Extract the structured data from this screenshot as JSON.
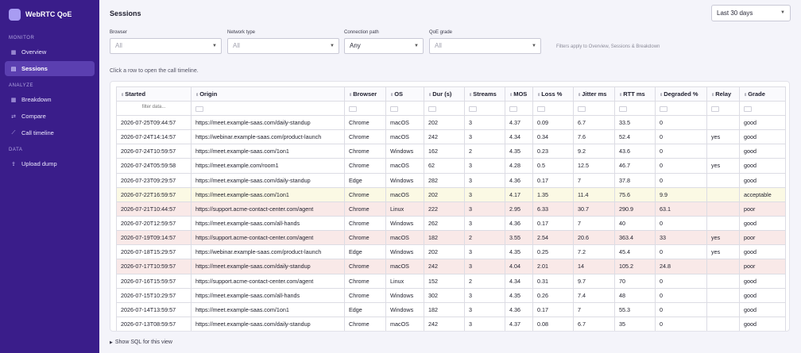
{
  "app": {
    "name": "WebRTC QoE"
  },
  "sidebar": {
    "sections": [
      {
        "title": "MONITOR",
        "items": [
          {
            "label": "Overview",
            "icon": "grid-icon"
          },
          {
            "label": "Sessions",
            "icon": "list-icon",
            "active": true
          }
        ]
      },
      {
        "title": "ANALYZE",
        "items": [
          {
            "label": "Breakdown",
            "icon": "grid-icon"
          },
          {
            "label": "Compare",
            "icon": "compare-icon"
          },
          {
            "label": "Call timeline",
            "icon": "timeline-icon"
          }
        ]
      },
      {
        "title": "DATA",
        "items": [
          {
            "label": "Upload dump",
            "icon": "upload-icon"
          }
        ]
      }
    ]
  },
  "header": {
    "title": "Sessions",
    "range": "Last 30 days"
  },
  "filters": {
    "browser": {
      "label": "Browser",
      "value": "All"
    },
    "network": {
      "label": "Network type",
      "value": "All"
    },
    "connection": {
      "label": "Connection path",
      "value": "Any"
    },
    "grade": {
      "label": "QoE grade",
      "value": "All"
    },
    "note": "Filters apply to Overview, Sessions & Breakdown"
  },
  "hint": "Click a row to open the call timeline.",
  "table": {
    "columns": [
      "Started",
      "Origin",
      "Browser",
      "OS",
      "Dur (s)",
      "Streams",
      "MOS",
      "Loss %",
      "Jitter ms",
      "RTT ms",
      "Degraded %",
      "Relay",
      "Grade"
    ],
    "filter_placeholder": "filter data...",
    "rows": [
      [
        "2026-07-25T09:44:57",
        "https://meet.example-saas.com/daily-standup",
        "Chrome",
        "macOS",
        "202",
        "3",
        "4.37",
        "0.09",
        "6.7",
        "33.5",
        "0",
        "",
        "good"
      ],
      [
        "2026-07-24T14:14:57",
        "https://webinar.example-saas.com/product-launch",
        "Chrome",
        "macOS",
        "242",
        "3",
        "4.34",
        "0.34",
        "7.6",
        "52.4",
        "0",
        "yes",
        "good"
      ],
      [
        "2026-07-24T10:59:57",
        "https://meet.example-saas.com/1on1",
        "Chrome",
        "Windows",
        "162",
        "2",
        "4.35",
        "0.23",
        "9.2",
        "43.6",
        "0",
        "",
        "good"
      ],
      [
        "2026-07-24T05:59:58",
        "https://meet.example.com/room1",
        "Chrome",
        "macOS",
        "62",
        "3",
        "4.28",
        "0.5",
        "12.5",
        "46.7",
        "0",
        "yes",
        "good"
      ],
      [
        "2026-07-23T09:29:57",
        "https://meet.example-saas.com/daily-standup",
        "Edge",
        "Windows",
        "282",
        "3",
        "4.36",
        "0.17",
        "7",
        "37.8",
        "0",
        "",
        "good"
      ],
      [
        "2026-07-22T16:59:57",
        "https://meet.example-saas.com/1on1",
        "Chrome",
        "macOS",
        "202",
        "3",
        "4.17",
        "1.35",
        "11.4",
        "75.6",
        "9.9",
        "",
        "acceptable"
      ],
      [
        "2026-07-21T10:44:57",
        "https://support.acme-contact-center.com/agent",
        "Chrome",
        "Linux",
        "222",
        "3",
        "2.95",
        "6.33",
        "30.7",
        "290.9",
        "63.1",
        "",
        "poor"
      ],
      [
        "2026-07-20T12:59:57",
        "https://meet.example-saas.com/all-hands",
        "Chrome",
        "Windows",
        "262",
        "3",
        "4.36",
        "0.17",
        "7",
        "40",
        "0",
        "",
        "good"
      ],
      [
        "2026-07-19T09:14:57",
        "https://support.acme-contact-center.com/agent",
        "Chrome",
        "macOS",
        "182",
        "2",
        "3.55",
        "2.54",
        "20.6",
        "363.4",
        "33",
        "yes",
        "poor"
      ],
      [
        "2026-07-18T15:29:57",
        "https://webinar.example-saas.com/product-launch",
        "Edge",
        "Windows",
        "202",
        "3",
        "4.35",
        "0.25",
        "7.2",
        "45.4",
        "0",
        "yes",
        "good"
      ],
      [
        "2026-07-17T10:59:57",
        "https://meet.example-saas.com/daily-standup",
        "Chrome",
        "macOS",
        "242",
        "3",
        "4.04",
        "2.01",
        "14",
        "105.2",
        "24.8",
        "",
        "poor"
      ],
      [
        "2026-07-16T15:59:57",
        "https://support.acme-contact-center.com/agent",
        "Chrome",
        "Linux",
        "152",
        "2",
        "4.34",
        "0.31",
        "9.7",
        "70",
        "0",
        "",
        "good"
      ],
      [
        "2026-07-15T10:29:57",
        "https://meet.example-saas.com/all-hands",
        "Chrome",
        "Windows",
        "302",
        "3",
        "4.35",
        "0.26",
        "7.4",
        "48",
        "0",
        "",
        "good"
      ],
      [
        "2026-07-14T13:59:57",
        "https://meet.example-saas.com/1on1",
        "Edge",
        "Windows",
        "182",
        "3",
        "4.36",
        "0.17",
        "7",
        "55.3",
        "0",
        "",
        "good"
      ],
      [
        "2026-07-13T08:59:57",
        "https://meet.example-saas.com/daily-standup",
        "Chrome",
        "macOS",
        "242",
        "3",
        "4.37",
        "0.08",
        "6.7",
        "35",
        "0",
        "",
        "good"
      ]
    ]
  },
  "footer": {
    "sql_toggle": "Show SQL for this view"
  },
  "colors": {
    "sidebar": "#3a1d8a",
    "accent": "#5b3fb0",
    "acceptable_row": "#fbf9e4",
    "poor_row": "#f9e9e8"
  }
}
